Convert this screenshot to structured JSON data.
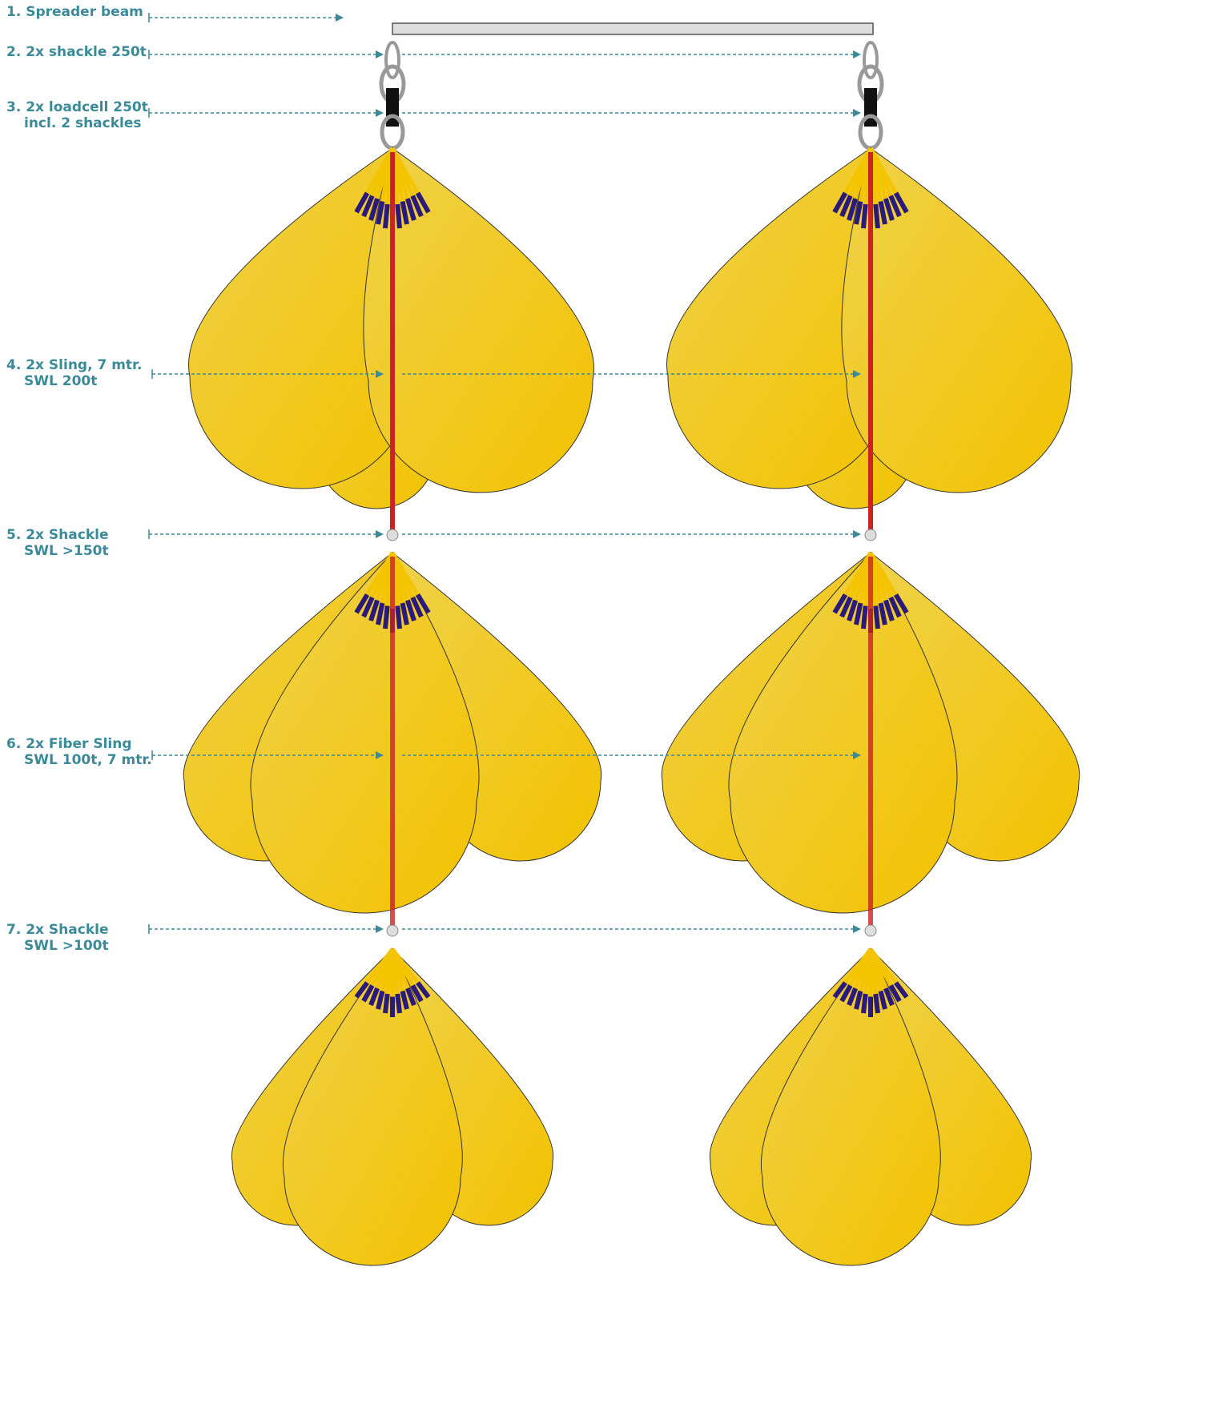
{
  "labels": [
    {
      "lines": [
        "1. Spreader beam"
      ]
    },
    {
      "lines": [
        "2. 2x shackle 250t"
      ]
    },
    {
      "lines": [
        "3. 2x loadcell 250t",
        "incl. 2 shackles"
      ]
    },
    {
      "lines": [
        "4. 2x Sling, 7 mtr.",
        "SWL 200t"
      ]
    },
    {
      "lines": [
        "5. 2x Shackle",
        "SWL >150t"
      ]
    },
    {
      "lines": [
        "6. 2x Fiber Sling",
        "SWL 100t, 7 mtr."
      ]
    },
    {
      "lines": [
        "7. 2x Shackle",
        "SWL >100t"
      ]
    }
  ]
}
